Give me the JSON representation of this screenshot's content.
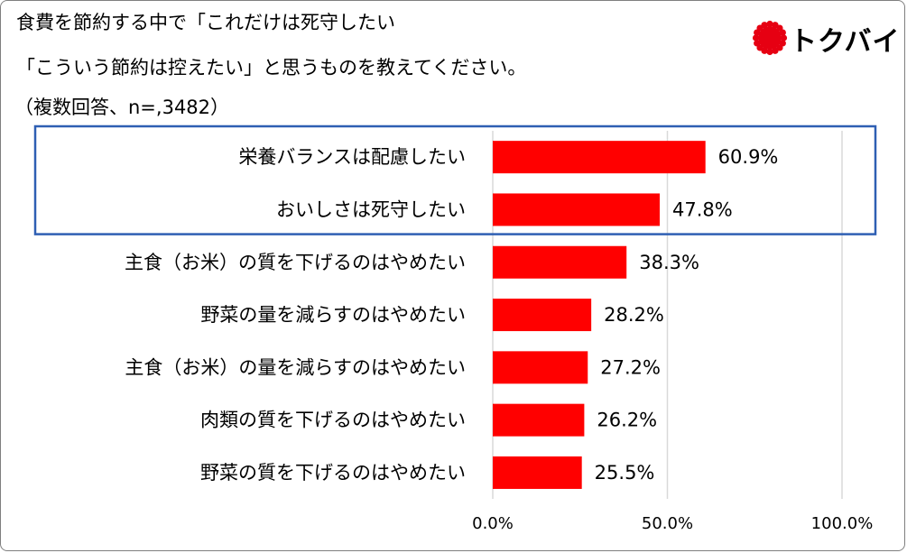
{
  "header": {
    "title_line1": "食費を節約する中で「これだけは死守したい",
    "title_line2": "「こういう節約は控えたい」と思うものを教えてください。",
    "subtitle": "（複数回答、n=,3482）"
  },
  "logo": {
    "text": "トクバイ",
    "color": "#e60012"
  },
  "colors": {
    "bar": "#ff0000",
    "highlight_box": "#2e5fb3",
    "gridline": "#d9d9d9"
  },
  "chart_data": {
    "type": "bar",
    "orientation": "horizontal",
    "categories": [
      "栄養バランスは配慮したい",
      "おいしさは死守したい",
      "主食（お米）の質を下げるのはやめたい",
      "野菜の量を減らすのはやめたい",
      "主食（お米）の量を減らすのはやめたい",
      "肉類の質を下げるのはやめたい",
      "野菜の質を下げるのはやめたい"
    ],
    "values": [
      60.9,
      47.8,
      38.3,
      28.2,
      27.2,
      26.2,
      25.5
    ],
    "value_labels": [
      "60.9%",
      "47.8%",
      "38.3%",
      "28.2%",
      "27.2%",
      "26.2%",
      "25.5%"
    ],
    "xlim": [
      0,
      100
    ],
    "xticks": [
      0,
      50,
      100
    ],
    "xtick_labels": [
      "0.0%",
      "50.0%",
      "100.0%"
    ],
    "grid": true,
    "highlighted_categories": [
      0,
      1
    ]
  }
}
